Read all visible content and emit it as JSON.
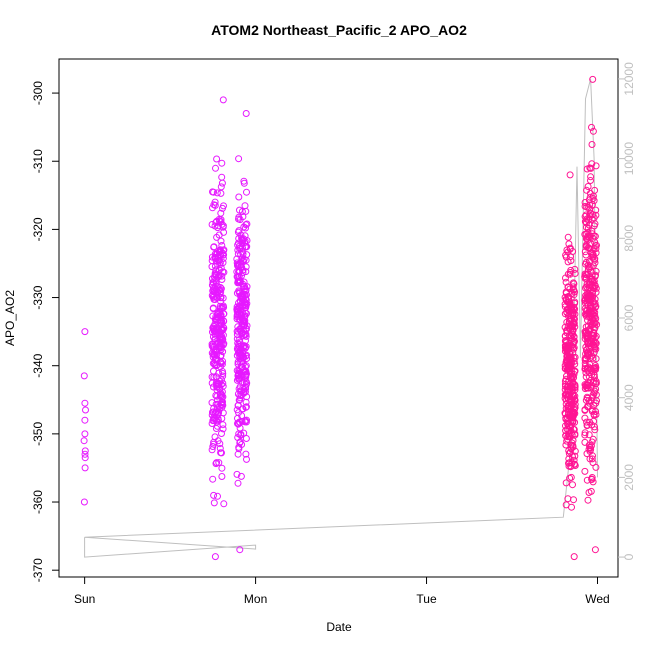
{
  "chart_data": {
    "type": "scatter",
    "title": "ATOM2 Northeast_Pacific_2 APO_AO2",
    "xlabel": "Date",
    "ylabel": "APO_AO2",
    "x_ticks": [
      "Sun",
      "Mon",
      "Tue",
      "Wed"
    ],
    "xlim": [
      -0.15,
      3.12
    ],
    "ylim": [
      -371,
      -295
    ],
    "y_ticks": [
      -300,
      -310,
      -320,
      -330,
      -340,
      -350,
      -360,
      -370
    ],
    "y2lim": [
      -500,
      12500
    ],
    "y2_ticks": [
      0,
      2000,
      4000,
      6000,
      8000,
      10000,
      12000
    ],
    "grid": false,
    "series": [
      {
        "color": "#e619ff",
        "marker": "open-circle",
        "clusters": [
          {
            "x_center": 0.0,
            "x_spread": 0.005,
            "y_values": [
              -335,
              -341.5,
              -345.5,
              -346.5,
              -348,
              -350,
              -351,
              -352.5,
              -353,
              -353.5,
              -355,
              -360
            ]
          },
          {
            "x_center": 0.78,
            "x_spread": 0.035,
            "y_min": -368,
            "y_max": -301,
            "count": 340
          },
          {
            "x_center": 0.92,
            "x_spread": 0.03,
            "y_min": -367,
            "y_max": -303,
            "count": 320
          }
        ]
      },
      {
        "color": "#ff1493",
        "marker": "open-circle",
        "clusters": [
          {
            "x_center": 2.84,
            "x_spread": 0.03,
            "y_min": -368,
            "y_max": -312,
            "count": 360
          },
          {
            "x_center": 2.96,
            "x_spread": 0.035,
            "y_min": -367,
            "y_max": -298,
            "count": 380
          }
        ]
      },
      {
        "color": "#bfbfbf",
        "marker": "line",
        "axis": "right",
        "points": [
          [
            0.0,
            500
          ],
          [
            0.0,
            0
          ],
          [
            1.0,
            300
          ],
          [
            1.0,
            200
          ],
          [
            0.0,
            500
          ],
          [
            2.8,
            1000
          ],
          [
            2.85,
            3000
          ],
          [
            2.88,
            9800
          ],
          [
            2.9,
            5000
          ],
          [
            2.93,
            11500
          ],
          [
            2.96,
            12000
          ],
          [
            2.98,
            10000
          ],
          [
            3.0,
            2000
          ]
        ]
      }
    ]
  }
}
